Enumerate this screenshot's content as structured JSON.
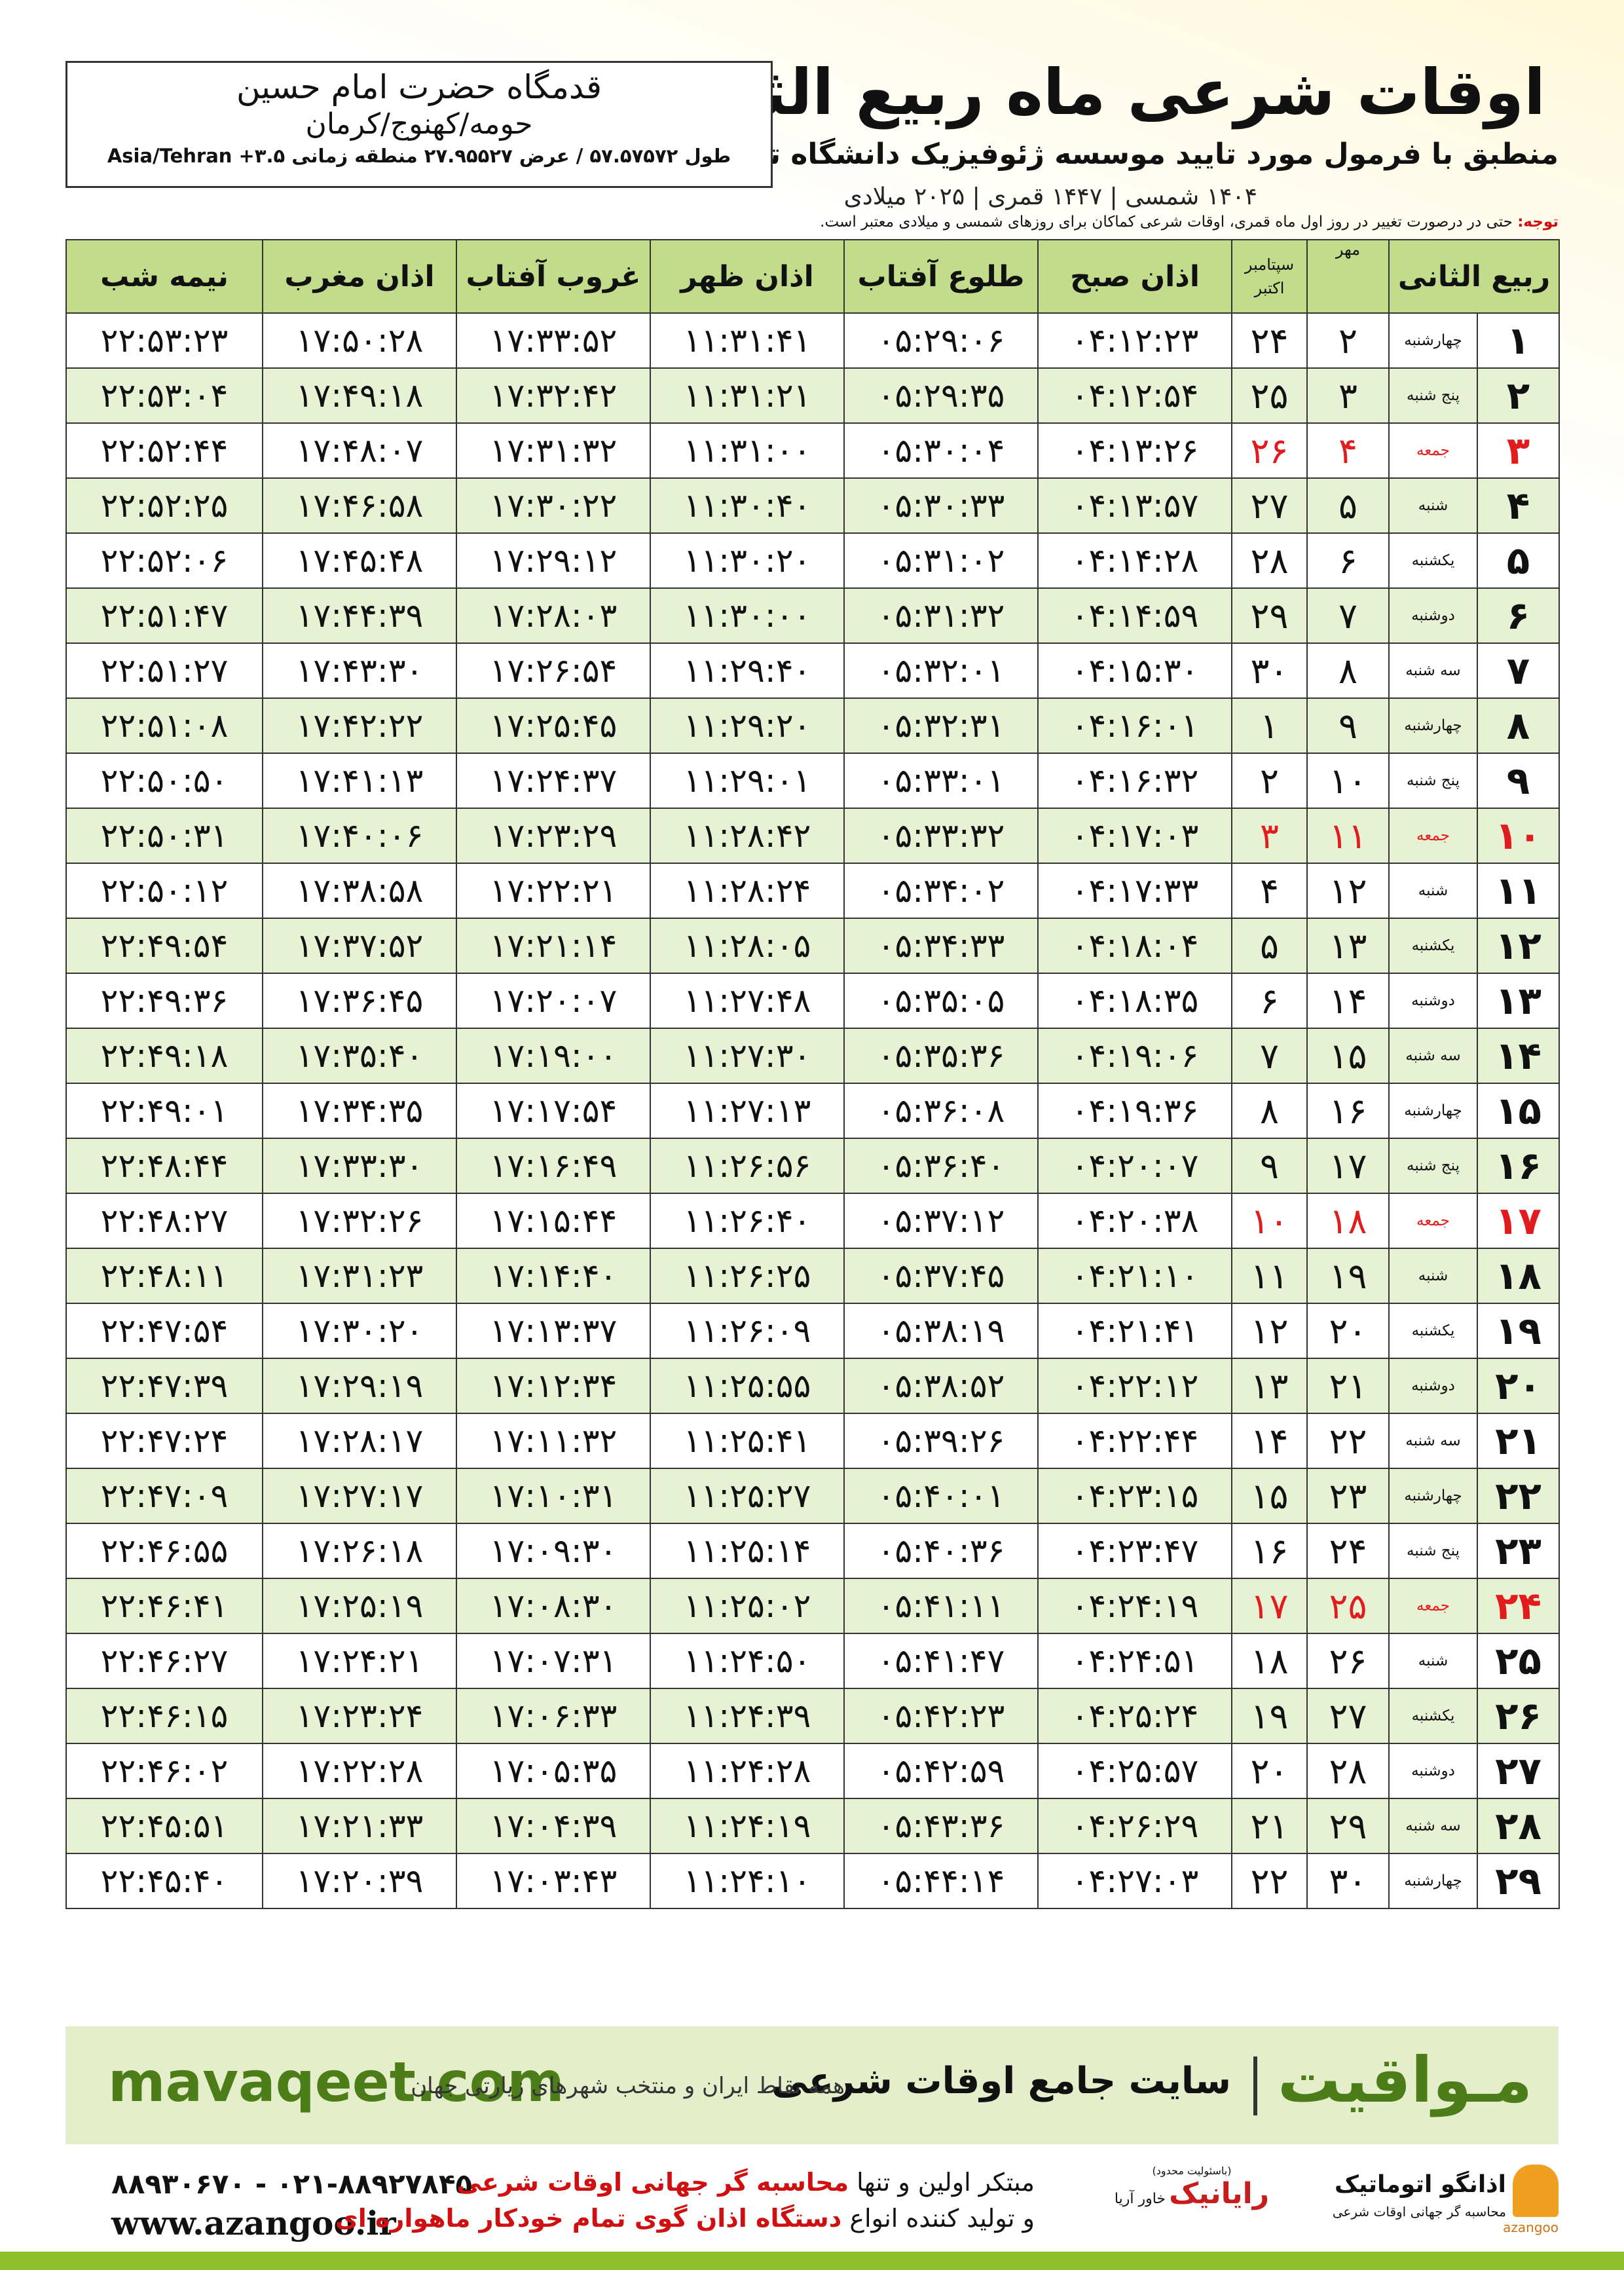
{
  "header": {
    "title": "اوقات شرعی ماه ربیع الثانی",
    "subtitle": "منطبق با فرمول مورد تایید موسسه ژئوفیزیک دانشگاه تهران",
    "calendar_line": "۱۴۰۴ شمسی | ۱۴۴۷ قمری | ۲۰۲۵ میلادی"
  },
  "location": {
    "name": "قدمگاه حضرت امام حسین",
    "region": "حومه/کهنوج/کرمان",
    "coordinates": "طول ۵۷.۵۷۵۷۲ / عرض ۲۷.۹۵۵۲۷ منطقه زمانی Asia/Tehran +۳.۵"
  },
  "note": {
    "label": "توجه:",
    "text": "حتی در درصورت تغییر در روز اول ماه قمری، اوقات شرعی کماکان برای روزهای شمسی و میلادی معتبر است."
  },
  "table": {
    "headers": {
      "rabi": "ربیع الثانی",
      "mehr": "مهر",
      "gregorian_1": "سپتامبر",
      "gregorian_2": "اکتبر",
      "fajr": "اذان صبح",
      "sunrise": "طلوع آفتاب",
      "dhuhr": "اذان ظهر",
      "sunset": "غروب آفتاب",
      "maghrib": "اذان مغرب",
      "midnight": "نیمه شب"
    },
    "rows": [
      [
        "۱",
        "چهارشنبه",
        "۲",
        "۲۴",
        "۰۴:۱۲:۲۳",
        "۰۵:۲۹:۰۶",
        "۱۱:۳۱:۴۱",
        "۱۷:۳۳:۵۲",
        "۱۷:۵۰:۲۸",
        "۲۲:۵۳:۲۳"
      ],
      [
        "۲",
        "پنج شنبه",
        "۳",
        "۲۵",
        "۰۴:۱۲:۵۴",
        "۰۵:۲۹:۳۵",
        "۱۱:۳۱:۲۱",
        "۱۷:۳۲:۴۲",
        "۱۷:۴۹:۱۸",
        "۲۲:۵۳:۰۴"
      ],
      [
        "۳",
        "جمعه",
        "۴",
        "۲۶",
        "۰۴:۱۳:۲۶",
        "۰۵:۳۰:۰۴",
        "۱۱:۳۱:۰۰",
        "۱۷:۳۱:۳۲",
        "۱۷:۴۸:۰۷",
        "۲۲:۵۲:۴۴"
      ],
      [
        "۴",
        "شنبه",
        "۵",
        "۲۷",
        "۰۴:۱۳:۵۷",
        "۰۵:۳۰:۳۳",
        "۱۱:۳۰:۴۰",
        "۱۷:۳۰:۲۲",
        "۱۷:۴۶:۵۸",
        "۲۲:۵۲:۲۵"
      ],
      [
        "۵",
        "یکشنبه",
        "۶",
        "۲۸",
        "۰۴:۱۴:۲۸",
        "۰۵:۳۱:۰۲",
        "۱۱:۳۰:۲۰",
        "۱۷:۲۹:۱۲",
        "۱۷:۴۵:۴۸",
        "۲۲:۵۲:۰۶"
      ],
      [
        "۶",
        "دوشنبه",
        "۷",
        "۲۹",
        "۰۴:۱۴:۵۹",
        "۰۵:۳۱:۳۲",
        "۱۱:۳۰:۰۰",
        "۱۷:۲۸:۰۳",
        "۱۷:۴۴:۳۹",
        "۲۲:۵۱:۴۷"
      ],
      [
        "۷",
        "سه شنبه",
        "۸",
        "۳۰",
        "۰۴:۱۵:۳۰",
        "۰۵:۳۲:۰۱",
        "۱۱:۲۹:۴۰",
        "۱۷:۲۶:۵۴",
        "۱۷:۴۳:۳۰",
        "۲۲:۵۱:۲۷"
      ],
      [
        "۸",
        "چهارشنبه",
        "۹",
        "۱",
        "۰۴:۱۶:۰۱",
        "۰۵:۳۲:۳۱",
        "۱۱:۲۹:۲۰",
        "۱۷:۲۵:۴۵",
        "۱۷:۴۲:۲۲",
        "۲۲:۵۱:۰۸"
      ],
      [
        "۹",
        "پنج شنبه",
        "۱۰",
        "۲",
        "۰۴:۱۶:۳۲",
        "۰۵:۳۳:۰۱",
        "۱۱:۲۹:۰۱",
        "۱۷:۲۴:۳۷",
        "۱۷:۴۱:۱۳",
        "۲۲:۵۰:۵۰"
      ],
      [
        "۱۰",
        "جمعه",
        "۱۱",
        "۳",
        "۰۴:۱۷:۰۳",
        "۰۵:۳۳:۳۲",
        "۱۱:۲۸:۴۲",
        "۱۷:۲۳:۲۹",
        "۱۷:۴۰:۰۶",
        "۲۲:۵۰:۳۱"
      ],
      [
        "۱۱",
        "شنبه",
        "۱۲",
        "۴",
        "۰۴:۱۷:۳۳",
        "۰۵:۳۴:۰۲",
        "۱۱:۲۸:۲۴",
        "۱۷:۲۲:۲۱",
        "۱۷:۳۸:۵۸",
        "۲۲:۵۰:۱۲"
      ],
      [
        "۱۲",
        "یکشنبه",
        "۱۳",
        "۵",
        "۰۴:۱۸:۰۴",
        "۰۵:۳۴:۳۳",
        "۱۱:۲۸:۰۵",
        "۱۷:۲۱:۱۴",
        "۱۷:۳۷:۵۲",
        "۲۲:۴۹:۵۴"
      ],
      [
        "۱۳",
        "دوشنبه",
        "۱۴",
        "۶",
        "۰۴:۱۸:۳۵",
        "۰۵:۳۵:۰۵",
        "۱۱:۲۷:۴۸",
        "۱۷:۲۰:۰۷",
        "۱۷:۳۶:۴۵",
        "۲۲:۴۹:۳۶"
      ],
      [
        "۱۴",
        "سه شنبه",
        "۱۵",
        "۷",
        "۰۴:۱۹:۰۶",
        "۰۵:۳۵:۳۶",
        "۱۱:۲۷:۳۰",
        "۱۷:۱۹:۰۰",
        "۱۷:۳۵:۴۰",
        "۲۲:۴۹:۱۸"
      ],
      [
        "۱۵",
        "چهارشنبه",
        "۱۶",
        "۸",
        "۰۴:۱۹:۳۶",
        "۰۵:۳۶:۰۸",
        "۱۱:۲۷:۱۳",
        "۱۷:۱۷:۵۴",
        "۱۷:۳۴:۳۵",
        "۲۲:۴۹:۰۱"
      ],
      [
        "۱۶",
        "پنج شنبه",
        "۱۷",
        "۹",
        "۰۴:۲۰:۰۷",
        "۰۵:۳۶:۴۰",
        "۱۱:۲۶:۵۶",
        "۱۷:۱۶:۴۹",
        "۱۷:۳۳:۳۰",
        "۲۲:۴۸:۴۴"
      ],
      [
        "۱۷",
        "جمعه",
        "۱۸",
        "۱۰",
        "۰۴:۲۰:۳۸",
        "۰۵:۳۷:۱۲",
        "۱۱:۲۶:۴۰",
        "۱۷:۱۵:۴۴",
        "۱۷:۳۲:۲۶",
        "۲۲:۴۸:۲۷"
      ],
      [
        "۱۸",
        "شنبه",
        "۱۹",
        "۱۱",
        "۰۴:۲۱:۱۰",
        "۰۵:۳۷:۴۵",
        "۱۱:۲۶:۲۵",
        "۱۷:۱۴:۴۰",
        "۱۷:۳۱:۲۳",
        "۲۲:۴۸:۱۱"
      ],
      [
        "۱۹",
        "یکشنبه",
        "۲۰",
        "۱۲",
        "۰۴:۲۱:۴۱",
        "۰۵:۳۸:۱۹",
        "۱۱:۲۶:۰۹",
        "۱۷:۱۳:۳۷",
        "۱۷:۳۰:۲۰",
        "۲۲:۴۷:۵۴"
      ],
      [
        "۲۰",
        "دوشنبه",
        "۲۱",
        "۱۳",
        "۰۴:۲۲:۱۲",
        "۰۵:۳۸:۵۲",
        "۱۱:۲۵:۵۵",
        "۱۷:۱۲:۳۴",
        "۱۷:۲۹:۱۹",
        "۲۲:۴۷:۳۹"
      ],
      [
        "۲۱",
        "سه شنبه",
        "۲۲",
        "۱۴",
        "۰۴:۲۲:۴۴",
        "۰۵:۳۹:۲۶",
        "۱۱:۲۵:۴۱",
        "۱۷:۱۱:۳۲",
        "۱۷:۲۸:۱۷",
        "۲۲:۴۷:۲۴"
      ],
      [
        "۲۲",
        "چهارشنبه",
        "۲۳",
        "۱۵",
        "۰۴:۲۳:۱۵",
        "۰۵:۴۰:۰۱",
        "۱۱:۲۵:۲۷",
        "۱۷:۱۰:۳۱",
        "۱۷:۲۷:۱۷",
        "۲۲:۴۷:۰۹"
      ],
      [
        "۲۳",
        "پنج شنبه",
        "۲۴",
        "۱۶",
        "۰۴:۲۳:۴۷",
        "۰۵:۴۰:۳۶",
        "۱۱:۲۵:۱۴",
        "۱۷:۰۹:۳۰",
        "۱۷:۲۶:۱۸",
        "۲۲:۴۶:۵۵"
      ],
      [
        "۲۴",
        "جمعه",
        "۲۵",
        "۱۷",
        "۰۴:۲۴:۱۹",
        "۰۵:۴۱:۱۱",
        "۱۱:۲۵:۰۲",
        "۱۷:۰۸:۳۰",
        "۱۷:۲۵:۱۹",
        "۲۲:۴۶:۴۱"
      ],
      [
        "۲۵",
        "شنبه",
        "۲۶",
        "۱۸",
        "۰۴:۲۴:۵۱",
        "۰۵:۴۱:۴۷",
        "۱۱:۲۴:۵۰",
        "۱۷:۰۷:۳۱",
        "۱۷:۲۴:۲۱",
        "۲۲:۴۶:۲۷"
      ],
      [
        "۲۶",
        "یکشنبه",
        "۲۷",
        "۱۹",
        "۰۴:۲۵:۲۴",
        "۰۵:۴۲:۲۳",
        "۱۱:۲۴:۳۹",
        "۱۷:۰۶:۳۳",
        "۱۷:۲۳:۲۴",
        "۲۲:۴۶:۱۵"
      ],
      [
        "۲۷",
        "دوشنبه",
        "۲۸",
        "۲۰",
        "۰۴:۲۵:۵۷",
        "۰۵:۴۲:۵۹",
        "۱۱:۲۴:۲۸",
        "۱۷:۰۵:۳۵",
        "۱۷:۲۲:۲۸",
        "۲۲:۴۶:۰۲"
      ],
      [
        "۲۸",
        "سه شنبه",
        "۲۹",
        "۲۱",
        "۰۴:۲۶:۲۹",
        "۰۵:۴۳:۳۶",
        "۱۱:۲۴:۱۹",
        "۱۷:۰۴:۳۹",
        "۱۷:۲۱:۳۳",
        "۲۲:۴۵:۵۱"
      ],
      [
        "۲۹",
        "چهارشنبه",
        "۳۰",
        "۲۲",
        "۰۴:۲۷:۰۳",
        "۰۵:۴۴:۱۴",
        "۱۱:۲۴:۱۰",
        "۱۷:۰۳:۴۳",
        "۱۷:۲۰:۳۹",
        "۲۲:۴۵:۴۰"
      ]
    ]
  },
  "footer": {
    "site": "mavaqeet.com",
    "brand": "مـواقیت",
    "slogan": "سایت جامع اوقات شرعی",
    "coverage": "همه نقاط ایران و منتخب شهرهای زیارتی جهان"
  },
  "contact": {
    "phone": "۰۲۱-۸۸۹۲۷۸۴۵ - ۸۸۹۳۰۶۷۰",
    "web": "www.azangoo.ir",
    "line1_a": "مبتکر اولین و تنها ",
    "line1_b": "محاسبه گر جهانی اوقات شرعی",
    "line2_a": "و تولید کننده انواع ",
    "line2_b": "دستگاه اذان گوی تمام خودکار ماهواره ای"
  },
  "logos": {
    "raianik_note": "(باسئولیت محدود)",
    "raianik": "رایانیک",
    "raianik_sub": "خاور آریا",
    "azangoo": "اذانگو اتوماتیک",
    "azangoo_sub": "محاسبه گر جهانی اوقات شرعی",
    "azangoo_latin": "azangoo"
  }
}
